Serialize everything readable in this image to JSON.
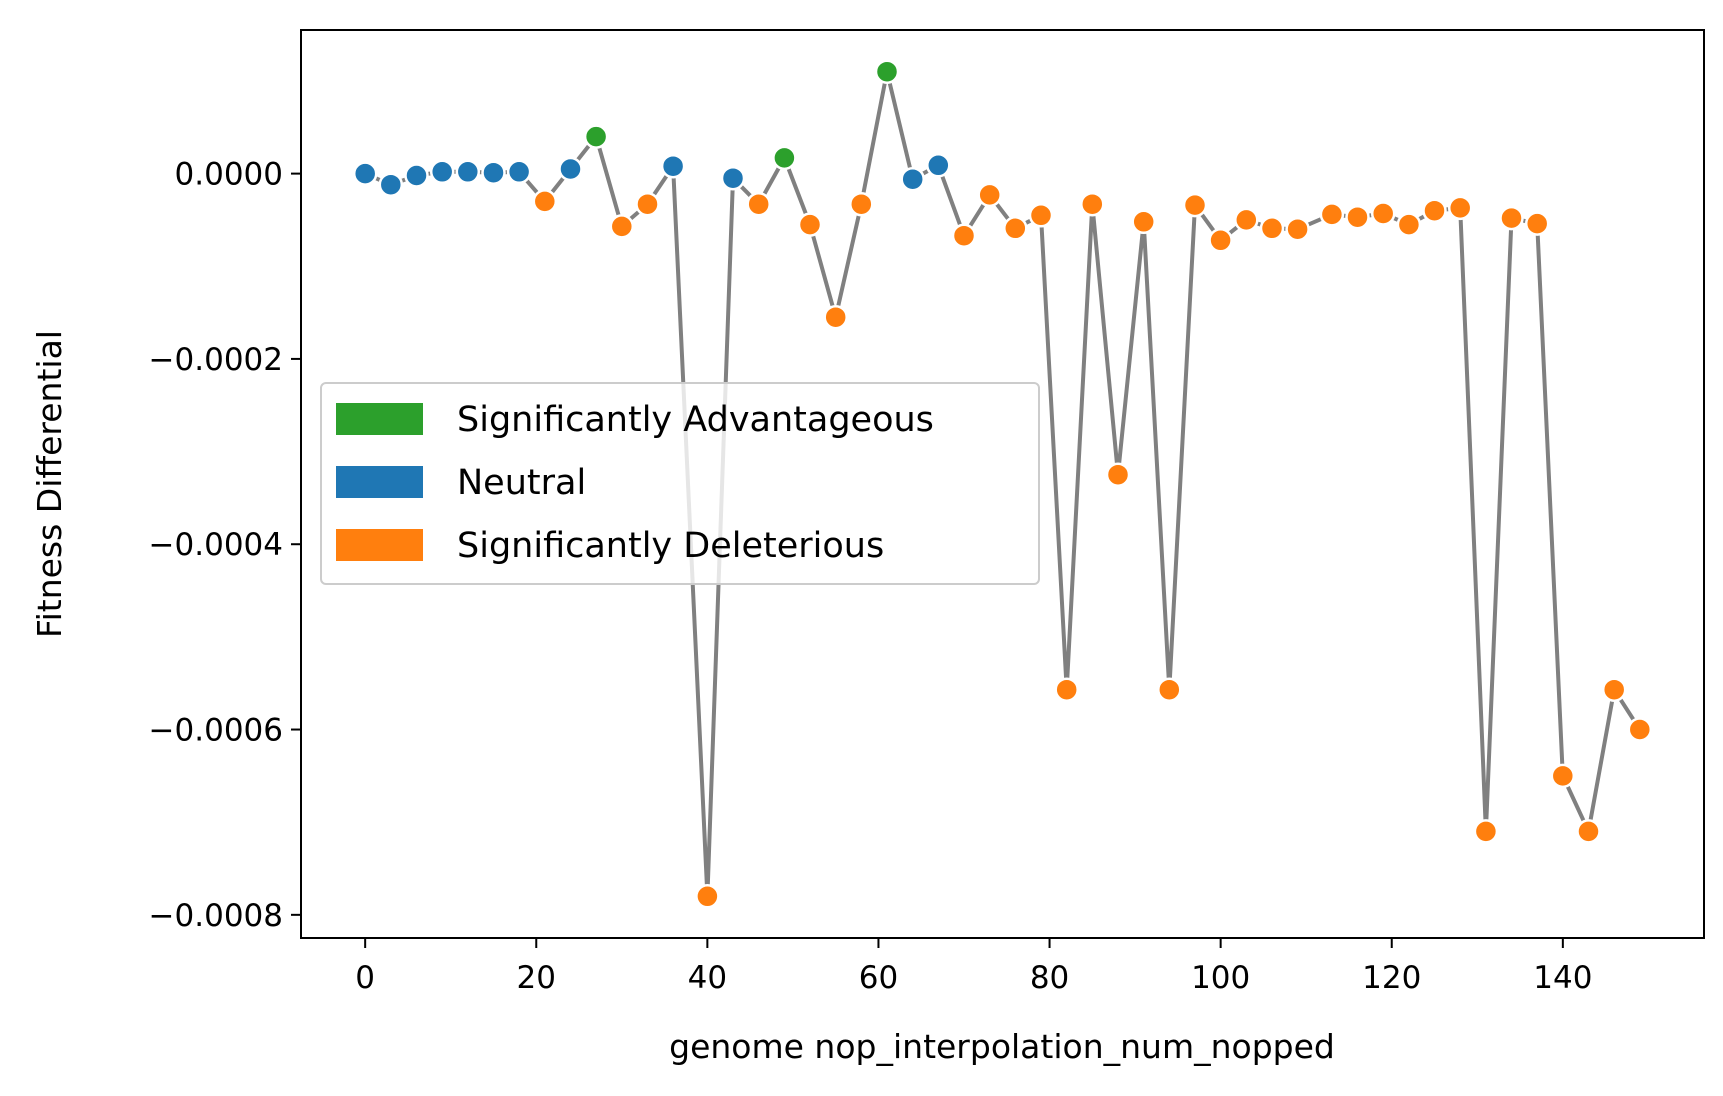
{
  "chart_data": {
    "type": "scatter",
    "title": "",
    "xlabel": "genome nop_interpolation_num_nopped",
    "ylabel": "Fitness Differential",
    "xlim": [
      -7.5,
      156.5
    ],
    "ylim": [
      -0.000825,
      0.000155
    ],
    "xticks": [
      0,
      20,
      40,
      60,
      80,
      100,
      120,
      140
    ],
    "xtick_labels": [
      "0",
      "20",
      "40",
      "60",
      "80",
      "100",
      "120",
      "140"
    ],
    "yticks": [
      0.0,
      -0.0002,
      -0.0004,
      -0.0006,
      -0.0008
    ],
    "ytick_labels": [
      "0.0000",
      "−0.0002",
      "−0.0004",
      "−0.0006",
      "−0.0008"
    ],
    "grid": false,
    "line_color": "#808080",
    "legend": {
      "placement": "center-left",
      "entries": [
        {
          "label": "Significantly Advantageous",
          "category": "advantageous",
          "color": "#2ca02c"
        },
        {
          "label": "Neutral",
          "category": "neutral",
          "color": "#1f77b4"
        },
        {
          "label": "Significantly Deleterious",
          "category": "deleterious",
          "color": "#ff7f0e"
        }
      ]
    },
    "points": [
      {
        "x": 0,
        "y": 0.0,
        "category": "neutral"
      },
      {
        "x": 3,
        "y": -1.2e-05,
        "category": "neutral"
      },
      {
        "x": 6,
        "y": -2e-06,
        "category": "neutral"
      },
      {
        "x": 9,
        "y": 2e-06,
        "category": "neutral"
      },
      {
        "x": 12,
        "y": 2e-06,
        "category": "neutral"
      },
      {
        "x": 15,
        "y": 1e-06,
        "category": "neutral"
      },
      {
        "x": 18,
        "y": 2e-06,
        "category": "neutral"
      },
      {
        "x": 21,
        "y": -3e-05,
        "category": "deleterious"
      },
      {
        "x": 24,
        "y": 5e-06,
        "category": "neutral"
      },
      {
        "x": 27,
        "y": 4e-05,
        "category": "advantageous"
      },
      {
        "x": 30,
        "y": -5.7e-05,
        "category": "deleterious"
      },
      {
        "x": 33,
        "y": -3.3e-05,
        "category": "deleterious"
      },
      {
        "x": 36,
        "y": 8e-06,
        "category": "neutral"
      },
      {
        "x": 40,
        "y": -0.00078,
        "category": "deleterious"
      },
      {
        "x": 43,
        "y": -5e-06,
        "category": "neutral"
      },
      {
        "x": 46,
        "y": -3.3e-05,
        "category": "deleterious"
      },
      {
        "x": 49,
        "y": 1.7e-05,
        "category": "advantageous"
      },
      {
        "x": 52,
        "y": -5.5e-05,
        "category": "deleterious"
      },
      {
        "x": 55,
        "y": -0.000155,
        "category": "deleterious"
      },
      {
        "x": 58,
        "y": -3.3e-05,
        "category": "deleterious"
      },
      {
        "x": 61,
        "y": 0.00011,
        "category": "advantageous"
      },
      {
        "x": 64,
        "y": -6e-06,
        "category": "neutral"
      },
      {
        "x": 67,
        "y": 9e-06,
        "category": "neutral"
      },
      {
        "x": 70,
        "y": -6.7e-05,
        "category": "deleterious"
      },
      {
        "x": 73,
        "y": -2.3e-05,
        "category": "deleterious"
      },
      {
        "x": 76,
        "y": -5.9e-05,
        "category": "deleterious"
      },
      {
        "x": 79,
        "y": -4.5e-05,
        "category": "deleterious"
      },
      {
        "x": 82,
        "y": -0.000557,
        "category": "deleterious"
      },
      {
        "x": 85,
        "y": -3.3e-05,
        "category": "deleterious"
      },
      {
        "x": 88,
        "y": -0.000325,
        "category": "deleterious"
      },
      {
        "x": 91,
        "y": -5.2e-05,
        "category": "deleterious"
      },
      {
        "x": 94,
        "y": -0.000557,
        "category": "deleterious"
      },
      {
        "x": 97,
        "y": -3.4e-05,
        "category": "deleterious"
      },
      {
        "x": 100,
        "y": -7.2e-05,
        "category": "deleterious"
      },
      {
        "x": 103,
        "y": -5e-05,
        "category": "deleterious"
      },
      {
        "x": 106,
        "y": -5.9e-05,
        "category": "deleterious"
      },
      {
        "x": 109,
        "y": -6e-05,
        "category": "deleterious"
      },
      {
        "x": 113,
        "y": -4.4e-05,
        "category": "deleterious"
      },
      {
        "x": 116,
        "y": -4.7e-05,
        "category": "deleterious"
      },
      {
        "x": 119,
        "y": -4.3e-05,
        "category": "deleterious"
      },
      {
        "x": 122,
        "y": -5.5e-05,
        "category": "deleterious"
      },
      {
        "x": 125,
        "y": -4e-05,
        "category": "deleterious"
      },
      {
        "x": 128,
        "y": -3.7e-05,
        "category": "deleterious"
      },
      {
        "x": 131,
        "y": -0.00071,
        "category": "deleterious"
      },
      {
        "x": 134,
        "y": -4.8e-05,
        "category": "deleterious"
      },
      {
        "x": 137,
        "y": -5.4e-05,
        "category": "deleterious"
      },
      {
        "x": 140,
        "y": -0.00065,
        "category": "deleterious"
      },
      {
        "x": 143,
        "y": -0.00071,
        "category": "deleterious"
      },
      {
        "x": 146,
        "y": -0.000557,
        "category": "deleterious"
      },
      {
        "x": 149,
        "y": -0.0006,
        "category": "deleterious"
      }
    ]
  }
}
